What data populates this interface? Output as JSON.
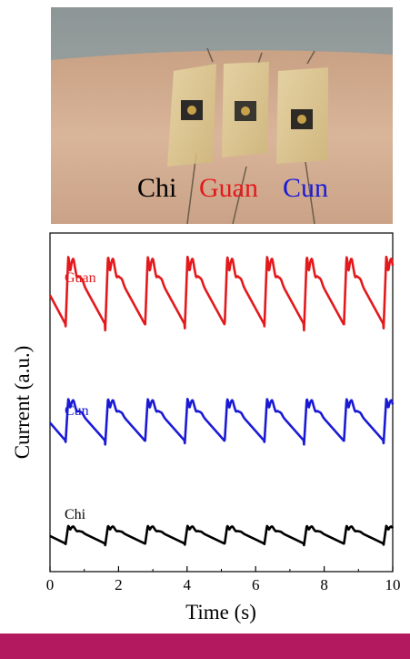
{
  "photo": {
    "labels": [
      {
        "text": "Chi",
        "color": "#000000"
      },
      {
        "text": "Guan",
        "color": "#e3191c"
      },
      {
        "text": "Cun",
        "color": "#1a1ad6"
      }
    ]
  },
  "chart_data": {
    "type": "line",
    "title": "",
    "xlabel": "Time (s)",
    "ylabel": "Current (a.u.)",
    "xlim": [
      0,
      10
    ],
    "xticks": [
      "0",
      "2",
      "4",
      "6",
      "8",
      "10"
    ],
    "y_tick_labels": false,
    "grid": false,
    "legend": "inline labels",
    "pulse_period_s": 1.16,
    "first_pulse_s": 0.45,
    "series": [
      {
        "name": "Guan",
        "color": "#e3191c",
        "baseline": 0.72,
        "amplitude": 0.21
      },
      {
        "name": "Cun",
        "color": "#1a1ad6",
        "baseline": 0.38,
        "amplitude": 0.13
      },
      {
        "name": "Chi",
        "color": "#000000",
        "baseline": 0.08,
        "amplitude": 0.055
      }
    ]
  },
  "bottom_bar": {
    "color": "#b3195e"
  }
}
